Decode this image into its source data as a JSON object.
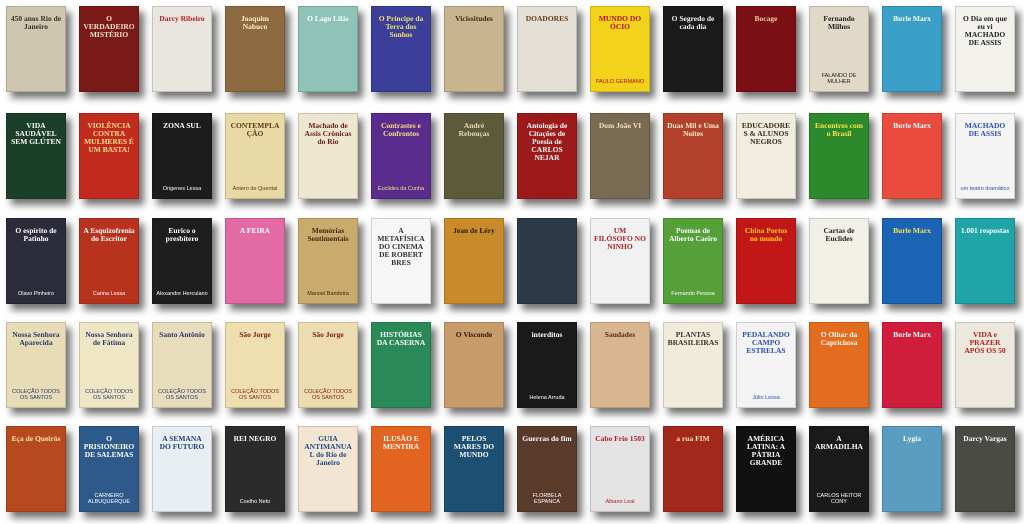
{
  "grid": {
    "rows": [
      [
        {
          "title": "450 anos Rio de Janeiro",
          "author": "",
          "bg": "#cfc6b0",
          "fg": "#3a2f22"
        },
        {
          "title": "O VERDADEIRO MISTÉRIO",
          "author": "",
          "bg": "#7a1a18",
          "fg": "#f2e6c8"
        },
        {
          "title": "Darcy Ribeiro",
          "author": "",
          "bg": "#e9e6df",
          "fg": "#b11d1d"
        },
        {
          "title": "Joaquim Nabuco",
          "author": "",
          "bg": "#8d6a3f",
          "fg": "#fff3c7"
        },
        {
          "title": "O Lago Lilás",
          "author": "",
          "bg": "#8fc3b8",
          "fg": "#ffffff"
        },
        {
          "title": "O Príncipe da Terra dos Sonhos",
          "author": "",
          "bg": "#3b3f9a",
          "fg": "#f0e26a"
        },
        {
          "title": "Vicissitudes",
          "author": "",
          "bg": "#c8b48e",
          "fg": "#3d2b14"
        },
        {
          "title": "DOADORES",
          "author": "",
          "bg": "#e4e0d6",
          "fg": "#6b3a1a"
        },
        {
          "title": "MUNDO DO ÓCIO",
          "author": "PAULO GERMANO",
          "bg": "#f2d21b",
          "fg": "#b30f0f"
        },
        {
          "title": "O Segredo de cada dia",
          "author": "",
          "bg": "#1a1a1a",
          "fg": "#f3f3f3"
        },
        {
          "title": "Bocage",
          "author": "",
          "bg": "#7a1015",
          "fg": "#f1cfa3"
        },
        {
          "title": "Fernando Milhos",
          "author": "FALANDO DE MULHER",
          "bg": "#e0d9c8",
          "fg": "#222222"
        },
        {
          "title": "Burle Marx",
          "author": "",
          "bg": "#3aa0c8",
          "fg": "#ffffff"
        },
        {
          "title": "O Dia em que eu vi MACHADO DE ASSIS",
          "author": "",
          "bg": "#f2f1ec",
          "fg": "#222222"
        }
      ],
      [
        {
          "title": "VIDA SAUDÁVEL SEM GLÚTEN",
          "author": "",
          "bg": "#1c3f2a",
          "fg": "#ffffff"
        },
        {
          "title": "VIOLÊNCIA CONTRA MULHERES É UM BASTA!",
          "author": "",
          "bg": "#c22a1d",
          "fg": "#ffe08a"
        },
        {
          "title": "ZONA SUL",
          "author": "Origenes Lessa",
          "bg": "#1c1c1c",
          "fg": "#ffffff"
        },
        {
          "title": "CONTEMPLAÇÃO",
          "author": "Antero de Quental",
          "bg": "#e9d9a4",
          "fg": "#5a3b0e"
        },
        {
          "title": "Machado de Assis Crônicas do Rio",
          "author": "",
          "bg": "#efe6cf",
          "fg": "#6a1b1b"
        },
        {
          "title": "Contrastes e Confrontos",
          "author": "Euclides da Cunha",
          "bg": "#5a2c8e",
          "fg": "#f7e07a"
        },
        {
          "title": "André Rebouças",
          "author": "",
          "bg": "#5d5a3c",
          "fg": "#e8dcb0"
        },
        {
          "title": "Antologia de Citações de Poesia de CARLOS NEJAR",
          "author": "",
          "bg": "#9c1a1a",
          "fg": "#ffffff"
        },
        {
          "title": "Dom João VI",
          "author": "",
          "bg": "#7a6a52",
          "fg": "#f0e4c4"
        },
        {
          "title": "Duas Mil e Uma Noites",
          "author": "",
          "bg": "#b3402a",
          "fg": "#fff1d0"
        },
        {
          "title": "EDUCADORES & ALUNOS NEGROS",
          "author": "",
          "bg": "#f1ece0",
          "fg": "#3a2a1a"
        },
        {
          "title": "Encontros com o Brasil",
          "author": "",
          "bg": "#2d8a2c",
          "fg": "#ffe54a"
        },
        {
          "title": "Burle Marx",
          "author": "",
          "bg": "#e94b3f",
          "fg": "#ffffff"
        },
        {
          "title": "MACHADO DE ASSIS",
          "author": "um teatro dramático",
          "bg": "#f4f4f4",
          "fg": "#2a4fb5"
        }
      ],
      [
        {
          "title": "O espírito de Patinho",
          "author": "Olavo Pinheiro",
          "bg": "#2b2b3a",
          "fg": "#ffffff"
        },
        {
          "title": "A Esquizofrenia do Escritor",
          "author": "Carina Lessa",
          "bg": "#b8331e",
          "fg": "#ffffff"
        },
        {
          "title": "Eurico o presbítero",
          "author": "Alexandre Herculano",
          "bg": "#1e1e1e",
          "fg": "#ffffff"
        },
        {
          "title": "A FEIRA",
          "author": "",
          "bg": "#e26aa5",
          "fg": "#ffffff"
        },
        {
          "title": "Memórias Sentimentais",
          "author": "Manoel Bandeira",
          "bg": "#c9ab6e",
          "fg": "#3a2a10"
        },
        {
          "title": "A METAFÍSICA DO CINEMA DE ROBERT BRES",
          "author": "",
          "bg": "#f6f6f6",
          "fg": "#333333"
        },
        {
          "title": "Jean de Léry",
          "author": "",
          "bg": "#c98a2a",
          "fg": "#2a1a05"
        },
        {
          "title": "",
          "author": "",
          "bg": "#2b3a46",
          "fg": "#ffffff"
        },
        {
          "title": "UM FILÓSOFO NO NINHO",
          "author": "",
          "bg": "#f1f1f1",
          "fg": "#b02020"
        },
        {
          "title": "Poemas de Alberto Caeiro",
          "author": "Fernando Pessoa",
          "bg": "#56a03a",
          "fg": "#ffffff"
        },
        {
          "title": "China Portos no mundo",
          "author": "",
          "bg": "#c21717",
          "fg": "#ffd21a"
        },
        {
          "title": "Cartas de Euclides",
          "author": "",
          "bg": "#f1efe6",
          "fg": "#222222"
        },
        {
          "title": "Burle Marx",
          "author": "",
          "bg": "#1a63b5",
          "fg": "#ffe14a"
        },
        {
          "title": "1.001 respostas",
          "author": "",
          "bg": "#1fa4a8",
          "fg": "#ffffff"
        }
      ],
      [
        {
          "title": "Nossa Senhora Aparecida",
          "author": "COLEÇÃO TODOS OS SANTOS",
          "bg": "#e8dcb6",
          "fg": "#2a3a6a"
        },
        {
          "title": "Nossa Senhora de Fátima",
          "author": "COLEÇÃO TODOS OS SANTOS",
          "bg": "#efe6c6",
          "fg": "#2a3a6a"
        },
        {
          "title": "Santo Antônio",
          "author": "COLEÇÃO TODOS OS SANTOS",
          "bg": "#e7dcbb",
          "fg": "#2a3a6a"
        },
        {
          "title": "São Jorge",
          "author": "COLEÇÃO TODOS OS SANTOS",
          "bg": "#efdfae",
          "fg": "#7a1a1a"
        },
        {
          "title": "São Jorge",
          "author": "COLEÇÃO TODOS OS SANTOS",
          "bg": "#ecdcb0",
          "fg": "#7a1a1a"
        },
        {
          "title": "HISTÓRIAS DA CASERNA",
          "author": "",
          "bg": "#2a8a57",
          "fg": "#ffffff"
        },
        {
          "title": "O Visconde",
          "author": "",
          "bg": "#c79b6a",
          "fg": "#2a1a05"
        },
        {
          "title": "interditos",
          "author": "Helena Arruda",
          "bg": "#1a1a1a",
          "fg": "#ffffff"
        },
        {
          "title": "Saudades",
          "author": "",
          "bg": "#d8b690",
          "fg": "#5a2a10"
        },
        {
          "title": "PLANTAS BRASILEIRAS",
          "author": "",
          "bg": "#f1ecd9",
          "fg": "#333333"
        },
        {
          "title": "PEDALANDO CAMPO ESTRELAS",
          "author": "Júlio Lessa",
          "bg": "#f3f3f3",
          "fg": "#2a4fb5"
        },
        {
          "title": "O Olhar da Caprichosa",
          "author": "",
          "bg": "#e36c1e",
          "fg": "#ffffff"
        },
        {
          "title": "Burle Marx",
          "author": "",
          "bg": "#d11d3c",
          "fg": "#ffffff"
        },
        {
          "title": "VIDA e PRAZER APÓS OS 50",
          "author": "",
          "bg": "#ece8de",
          "fg": "#b0201c"
        }
      ],
      [
        {
          "title": "Eça de Queirós",
          "author": "",
          "bg": "#b64a1e",
          "fg": "#ffe6a8"
        },
        {
          "title": "O PRISIONEIRO DE SALEMAS",
          "author": "CARNEIRO ALBUQUERQUE",
          "bg": "#2d5a8a",
          "fg": "#ffffff"
        },
        {
          "title": "A SEMANA DO FUTURO",
          "author": "",
          "bg": "#e9eef3",
          "fg": "#1d3d7a"
        },
        {
          "title": "REI NEGRO",
          "author": "Coelho Neto",
          "bg": "#2b2b2b",
          "fg": "#ffffff"
        },
        {
          "title": "GUIA ANTIMANUAL do Rio de Janeiro",
          "author": "",
          "bg": "#f2e6d2",
          "fg": "#1a4a8a"
        },
        {
          "title": "ILUSÃO E MENTIRA",
          "author": "",
          "bg": "#e26420",
          "fg": "#ffffff"
        },
        {
          "title": "PELOS MARES DO MUNDO",
          "author": "",
          "bg": "#1d4f73",
          "fg": "#ffffff"
        },
        {
          "title": "Guerras do fim",
          "author": "FLORBELA ESPANCA",
          "bg": "#5a3a2a",
          "fg": "#ffffff"
        },
        {
          "title": "Cabo Frio 1503",
          "author": "Albano Leal",
          "bg": "#e3e3e3",
          "fg": "#b01f1f"
        },
        {
          "title": "a rua FIM",
          "author": "",
          "bg": "#a3281c",
          "fg": "#ffe3b0"
        },
        {
          "title": "AMÉRICA LATINA: A PÁTRIA GRANDE",
          "author": "",
          "bg": "#111111",
          "fg": "#ffffff"
        },
        {
          "title": "A ARMADILHA",
          "author": "CARLOS HEITOR CONY",
          "bg": "#1a1a1a",
          "fg": "#ffffff"
        },
        {
          "title": "Lygia",
          "author": "",
          "bg": "#5a9dc0",
          "fg": "#ffffff"
        },
        {
          "title": "Darcy Vargas",
          "author": "",
          "bg": "#4a4a44",
          "fg": "#ffffff"
        }
      ]
    ]
  }
}
